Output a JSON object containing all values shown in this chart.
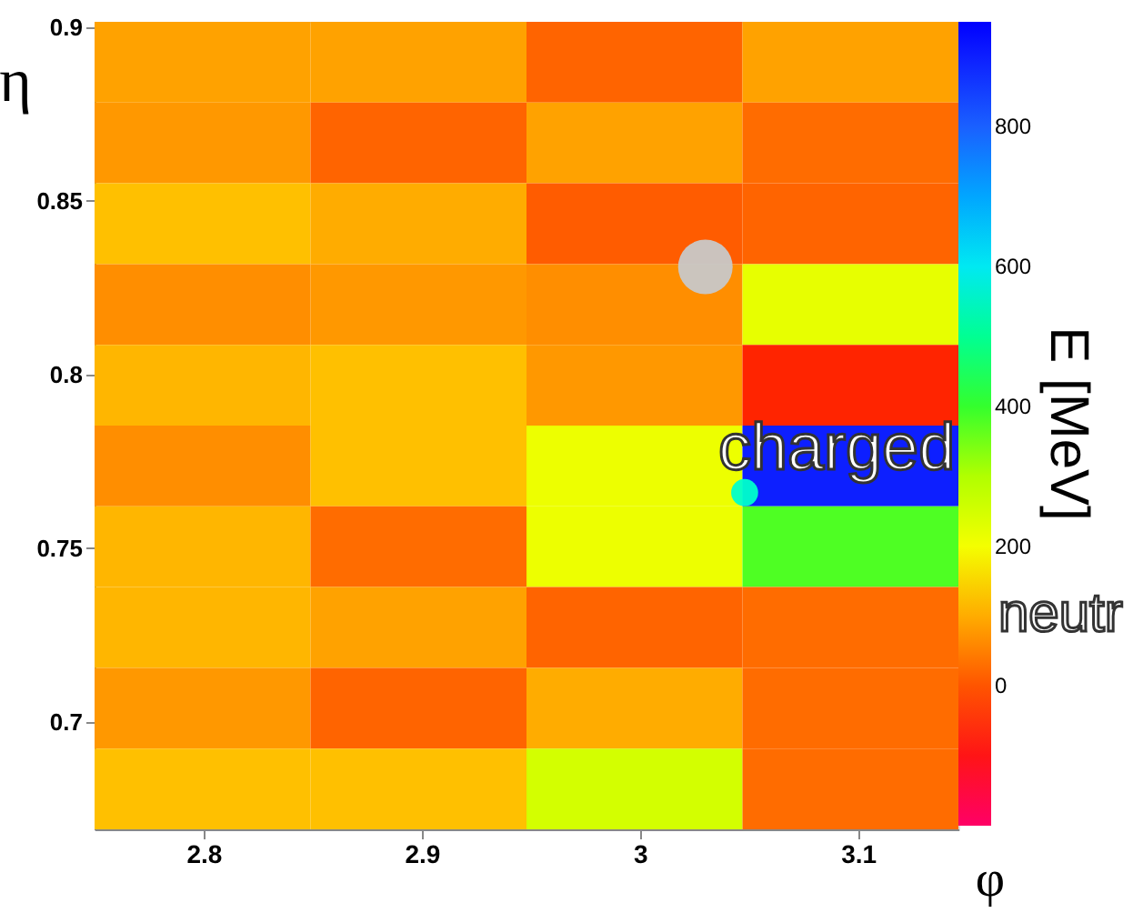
{
  "chart_data": {
    "type": "heatmap",
    "xlabel": "φ",
    "ylabel": "η",
    "clabel": "E [MeV]",
    "xlim": [
      2.75,
      3.146
    ],
    "xticks": [
      2.8,
      2.9,
      3,
      3.1
    ],
    "ylim": [
      0.669,
      0.9016
    ],
    "yticks": [
      0.7,
      0.75,
      0.8,
      0.85,
      0.9
    ],
    "clim": [
      -200,
      950
    ],
    "cticks": [
      0,
      200,
      400,
      600,
      800
    ],
    "cells": [
      [
        90,
        90,
        20,
        90
      ],
      [
        80,
        20,
        90,
        30
      ],
      [
        120,
        100,
        10,
        20
      ],
      [
        70,
        80,
        70,
        220
      ],
      [
        110,
        120,
        80,
        -60
      ],
      [
        70,
        120,
        210,
        900
      ],
      [
        110,
        30,
        210,
        380
      ],
      [
        110,
        90,
        20,
        30
      ],
      [
        80,
        20,
        100,
        30
      ],
      [
        120,
        120,
        250,
        30
      ]
    ],
    "series": [
      {
        "type": "scatter",
        "color": "#c8c8c8",
        "marker": "circle",
        "x": [
          3.03
        ],
        "values": [
          0.831
        ]
      },
      {
        "type": "scatter",
        "color": "#00ffcc",
        "marker": "circle",
        "x": [
          3.048
        ],
        "values": [
          0.766
        ]
      }
    ],
    "annotations": [
      "charged",
      "neutr"
    ],
    "grid": false
  }
}
